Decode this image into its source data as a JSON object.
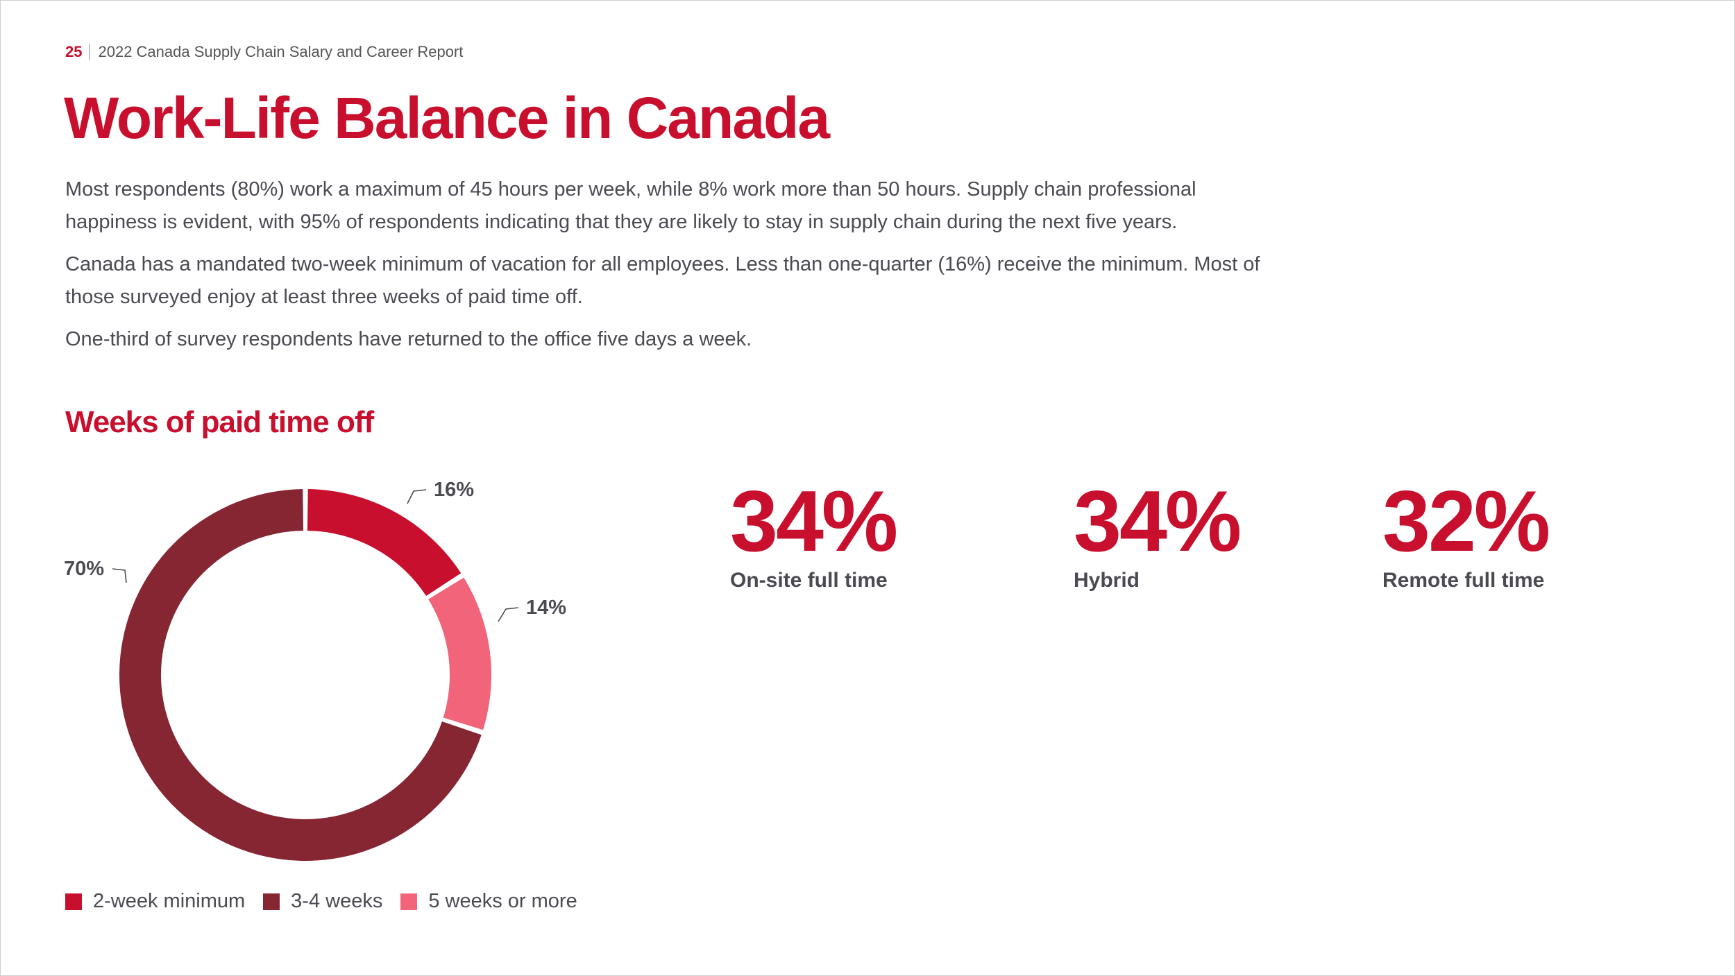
{
  "header": {
    "page_number": "25",
    "report_title": "2022 Canada Supply Chain Salary and Career Report"
  },
  "title": "Work-Life Balance in Canada",
  "paragraphs": [
    "Most respondents (80%) work a maximum of 45 hours per week, while 8% work more than 50 hours. Supply chain professional happiness is evident, with 95% of respondents indicating that they are likely to stay in supply chain during the next five years.",
    "Canada has a mandated two-week minimum of vacation for all employees. Less than one-quarter (16%) receive the minimum. Most of those surveyed enjoy at least three weeks of paid time off.",
    "One-third of survey respondents have returned to the office five days a week."
  ],
  "chart_data": {
    "type": "pie",
    "title": "Weeks of paid time off",
    "categories": [
      "2-week minimum",
      "5 weeks or more",
      "3-4 weeks"
    ],
    "values": [
      16,
      14,
      70
    ],
    "labels": [
      "16%",
      "14%",
      "70%"
    ],
    "colors": [
      "#c8102e",
      "#f2647a",
      "#862633"
    ],
    "legend_position": "bottom"
  },
  "legend": [
    {
      "label": "2-week minimum",
      "color": "#c8102e"
    },
    {
      "label": "3-4 weeks",
      "color": "#862633"
    },
    {
      "label": "5 weeks or more",
      "color": "#f2647a"
    }
  ],
  "stats": [
    {
      "value": "34%",
      "label": "On-site full time"
    },
    {
      "value": "34%",
      "label": "Hybrid"
    },
    {
      "value": "32%",
      "label": "Remote full time"
    }
  ]
}
